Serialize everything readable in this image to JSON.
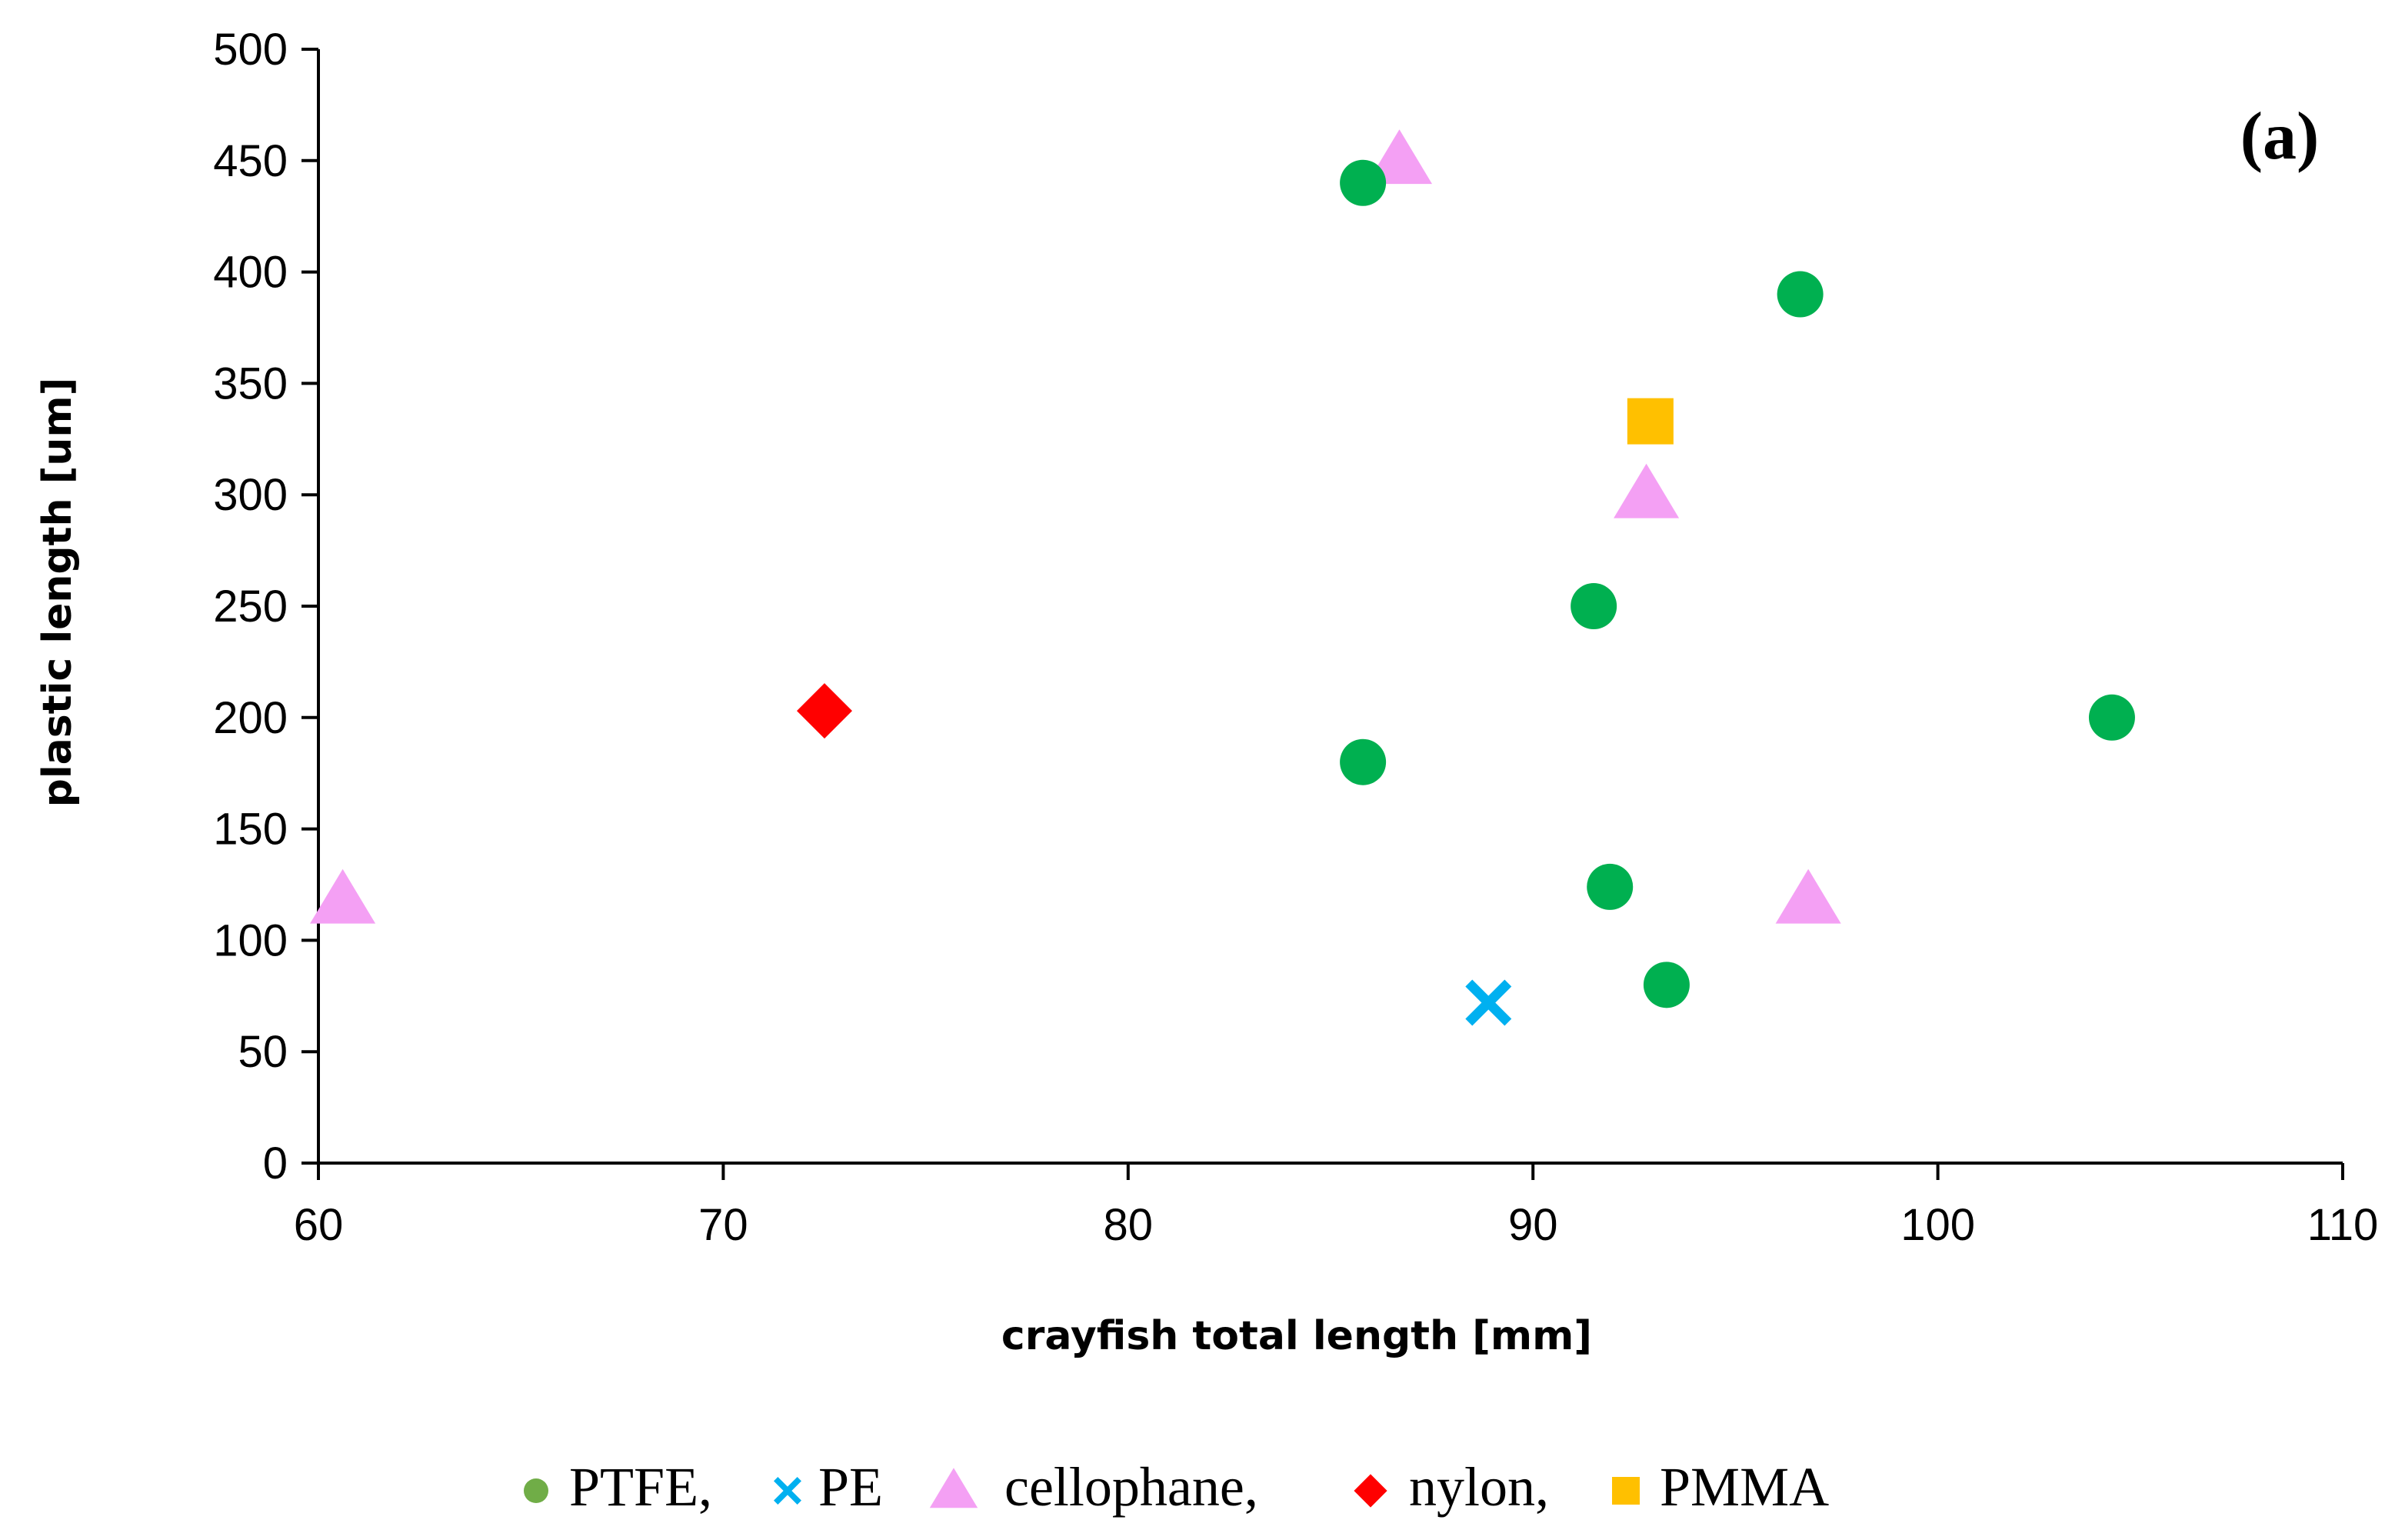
{
  "chart_data": {
    "type": "scatter",
    "panel_label": "(a)",
    "xlabel": "crayfish total length [mm]",
    "ylabel": "plastic length [um]",
    "xlim": [
      60,
      110
    ],
    "ylim": [
      0,
      500
    ],
    "xticks": [
      60,
      70,
      80,
      90,
      100,
      110
    ],
    "yticks": [
      0,
      50,
      100,
      150,
      200,
      250,
      300,
      350,
      400,
      450,
      500
    ],
    "grid": false,
    "legend_position": "bottom",
    "series": [
      {
        "name": "PTFE",
        "legend_label": "PTFE,",
        "marker": "circle",
        "color": "#00b050",
        "legend_color": "#70ad47",
        "points": [
          [
            85.8,
            440
          ],
          [
            96.6,
            390
          ],
          [
            91.5,
            250
          ],
          [
            104.3,
            200
          ],
          [
            85.8,
            180
          ],
          [
            91.9,
            124
          ],
          [
            93.3,
            80
          ]
        ]
      },
      {
        "name": "PE",
        "legend_label": "PE",
        "marker": "x",
        "color": "#00b0f0",
        "legend_color": "#00b0f0",
        "points": [
          [
            88.9,
            72
          ]
        ]
      },
      {
        "name": "cellophane",
        "legend_label": "cellophane,",
        "marker": "triangle",
        "color": "#f4a0f4",
        "legend_color": "#f4a0f4",
        "points": [
          [
            86.7,
            450
          ],
          [
            92.8,
            300
          ],
          [
            60.6,
            118
          ],
          [
            96.8,
            118
          ]
        ]
      },
      {
        "name": "nylon",
        "legend_label": "nylon,",
        "marker": "diamond",
        "color": "#ff0000",
        "legend_color": "#ff0000",
        "points": [
          [
            72.5,
            203
          ]
        ]
      },
      {
        "name": "PMMA",
        "legend_label": "PMMA",
        "marker": "square",
        "color": "#ffc000",
        "legend_color": "#ffc000",
        "points": [
          [
            92.9,
            333
          ]
        ]
      }
    ]
  }
}
